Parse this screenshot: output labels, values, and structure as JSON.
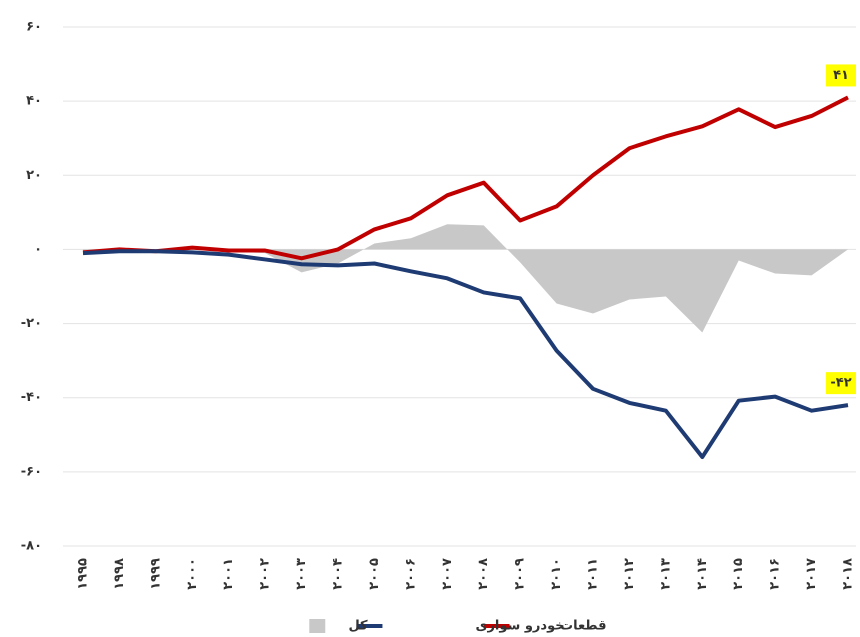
{
  "chart_data": {
    "type": "line",
    "categories": [
      "۱۹۹۵",
      "۱۹۹۸",
      "۱۹۹۹",
      "۲۰۰۰",
      "۲۰۰۱",
      "۲۰۰۲",
      "۲۰۰۳",
      "۲۰۰۴",
      "۲۰۰۵",
      "۲۰۰۶",
      "۲۰۰۷",
      "۲۰۰۸",
      "۲۰۰۹",
      "۲۰۱۰",
      "۲۰۱۱",
      "۲۰۱۲",
      "۲۰۱۳",
      "۲۰۱۴",
      "۲۰۱۵",
      "۲۰۱۶",
      "۲۰۱۷",
      "۲۰۱۸"
    ],
    "series": [
      {
        "name": "قطعات",
        "color": "#c00000",
        "type": "line",
        "end_label": "۴۱",
        "values": [
          -0.8,
          0,
          -0.5,
          0.5,
          -0.3,
          -0.3,
          -2.4,
          0,
          5.4,
          8.4,
          14.6,
          18,
          7.8,
          11.6,
          20,
          27.3,
          30.5,
          33.2,
          37.8,
          33,
          36,
          41
        ]
      },
      {
        "name": "خودرو سواری",
        "color": "#1f3b73",
        "type": "line",
        "end_label": "-۴۲",
        "values": [
          -1,
          -0.5,
          -0.5,
          -0.8,
          -1.4,
          -2.7,
          -4,
          -4.3,
          -3.8,
          -5.9,
          -7.8,
          -11.6,
          -13.2,
          -27.3,
          -37.6,
          -41.4,
          -43.5,
          -56,
          -40.8,
          -39.7,
          -43.5,
          -42
        ]
      },
      {
        "name": "کل",
        "color": "#c8c8c8",
        "type": "area",
        "values": [
          -0.5,
          0,
          -0.3,
          0,
          -0.5,
          -1,
          -6.2,
          -3.8,
          1.6,
          3,
          6.8,
          6.5,
          -3.5,
          -14.6,
          -17.3,
          -13.5,
          -12.7,
          -22.4,
          -3,
          -6.5,
          -7,
          0
        ]
      }
    ],
    "ylim": [
      -80,
      60
    ],
    "yticks": [
      {
        "value": 60,
        "label": "۶۰"
      },
      {
        "value": 40,
        "label": "۴۰"
      },
      {
        "value": 20,
        "label": "۲۰"
      },
      {
        "value": 0,
        "label": "۰"
      },
      {
        "value": -20,
        "label": "-۲۰"
      },
      {
        "value": -40,
        "label": "-۴۰"
      },
      {
        "value": -60,
        "label": "-۶۰"
      },
      {
        "value": -80,
        "label": "-۸۰"
      }
    ],
    "grid": true,
    "legend": "bottom"
  }
}
